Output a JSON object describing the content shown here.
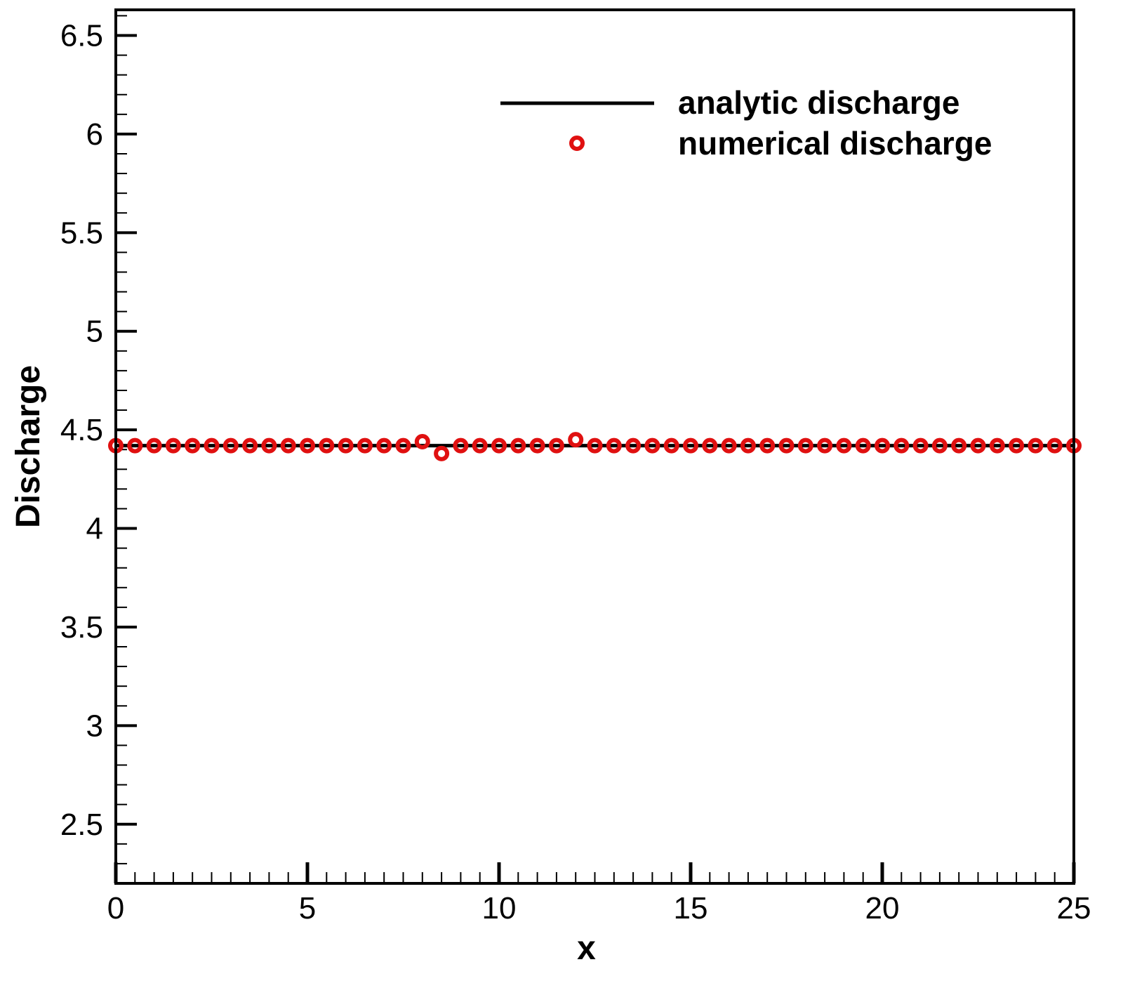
{
  "chart_data": {
    "type": "line",
    "xlabel": "x",
    "ylabel": "Discharge",
    "xlim": [
      0,
      25
    ],
    "ylim": [
      2.2,
      6.63
    ],
    "x_ticks": [
      "0",
      "5",
      "10",
      "15",
      "20",
      "25"
    ],
    "y_ticks": [
      "2.5",
      "3",
      "3.5",
      "4",
      "4.5",
      "5",
      "5.5",
      "6",
      "6.5"
    ],
    "grid": false,
    "legend_position": "top-right",
    "series": [
      {
        "name": "analytic discharge",
        "style": "line",
        "color": "#000000",
        "x": [
          0,
          25
        ],
        "y": [
          4.42,
          4.42
        ]
      },
      {
        "name": "numerical discharge",
        "style": "markers",
        "color": "#e01010",
        "x": [
          0,
          0.5,
          1,
          1.5,
          2,
          2.5,
          3,
          3.5,
          4,
          4.5,
          5,
          5.5,
          6,
          6.5,
          7,
          7.5,
          8,
          8.5,
          9,
          9.5,
          10,
          10.5,
          11,
          11.5,
          12,
          12.5,
          13,
          13.5,
          14,
          14.5,
          15,
          15.5,
          16,
          16.5,
          17,
          17.5,
          18,
          18.5,
          19,
          19.5,
          20,
          20.5,
          21,
          21.5,
          22,
          22.5,
          23,
          23.5,
          24,
          24.5,
          25
        ],
        "y": [
          4.42,
          4.42,
          4.42,
          4.42,
          4.42,
          4.42,
          4.42,
          4.42,
          4.42,
          4.42,
          4.42,
          4.42,
          4.42,
          4.42,
          4.42,
          4.42,
          4.44,
          4.38,
          4.42,
          4.42,
          4.42,
          4.42,
          4.42,
          4.42,
          4.45,
          4.42,
          4.42,
          4.42,
          4.42,
          4.42,
          4.42,
          4.42,
          4.42,
          4.42,
          4.42,
          4.42,
          4.42,
          4.42,
          4.42,
          4.42,
          4.42,
          4.42,
          4.42,
          4.42,
          4.42,
          4.42,
          4.42,
          4.42,
          4.42,
          4.42,
          4.42
        ]
      }
    ]
  }
}
